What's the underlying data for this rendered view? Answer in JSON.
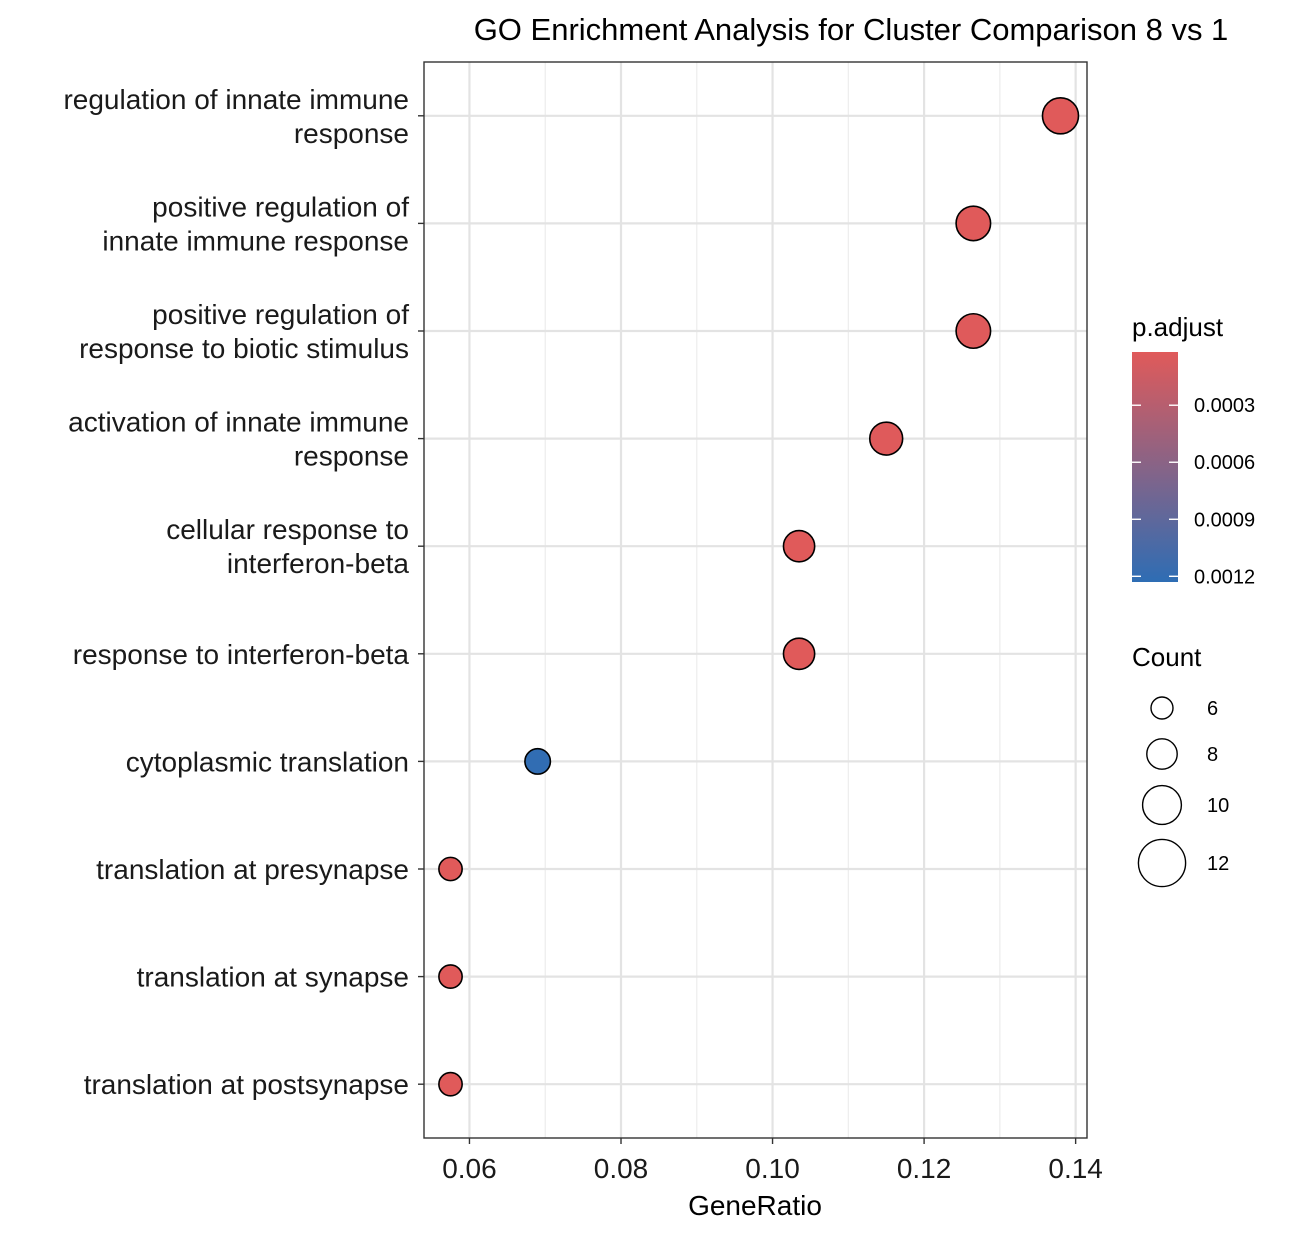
{
  "chart_data": {
    "type": "scatter",
    "title": "GO Enrichment Analysis for Cluster Comparison 8 vs 1",
    "xlabel": "GeneRatio",
    "ylabel": "",
    "xlim": [
      0.054,
      0.1415
    ],
    "x_ticks": [
      "0.06",
      "0.08",
      "0.10",
      "0.12",
      "0.14"
    ],
    "x_tick_values": [
      0.06,
      0.08,
      0.1,
      0.12,
      0.14
    ],
    "grid": true,
    "terms": [
      {
        "label": [
          "regulation of innate immune",
          "response"
        ],
        "gene_ratio": 0.138,
        "count": 12,
        "p_adjust": 2e-05
      },
      {
        "label": [
          "positive regulation of",
          "innate immune response"
        ],
        "gene_ratio": 0.1265,
        "count": 11,
        "p_adjust": 2e-05
      },
      {
        "label": [
          "positive regulation of",
          "response to biotic stimulus"
        ],
        "gene_ratio": 0.1265,
        "count": 11,
        "p_adjust": 3e-05
      },
      {
        "label": [
          "activation of innate immune",
          "response"
        ],
        "gene_ratio": 0.115,
        "count": 10,
        "p_adjust": 3e-05
      },
      {
        "label": [
          "cellular response to",
          "interferon-beta"
        ],
        "gene_ratio": 0.1035,
        "count": 9,
        "p_adjust": 2e-05
      },
      {
        "label": [
          "response to interferon-beta"
        ],
        "gene_ratio": 0.1035,
        "count": 9,
        "p_adjust": 2e-05
      },
      {
        "label": [
          "cytoplasmic translation"
        ],
        "gene_ratio": 0.069,
        "count": 6,
        "p_adjust": 0.00121
      },
      {
        "label": [
          "translation at presynapse"
        ],
        "gene_ratio": 0.0575,
        "count": 5,
        "p_adjust": 2e-05
      },
      {
        "label": [
          "translation at synapse"
        ],
        "gene_ratio": 0.0575,
        "count": 5,
        "p_adjust": 2e-05
      },
      {
        "label": [
          "translation at postsynapse"
        ],
        "gene_ratio": 0.0575,
        "count": 5,
        "p_adjust": 2e-05
      }
    ],
    "color_legend": {
      "title": "p.adjust",
      "range": [
        2e-05,
        0.00123
      ],
      "low_color": "#E05A5A",
      "high_color": "#2E6DB4",
      "ticks": [
        {
          "label": "0.0003",
          "value": 0.0003
        },
        {
          "label": "0.0006",
          "value": 0.0006
        },
        {
          "label": "0.0009",
          "value": 0.0009
        },
        {
          "label": "0.0012",
          "value": 0.0012
        }
      ]
    },
    "size_legend": {
      "title": "Count",
      "entries": [
        {
          "label": "6",
          "value": 6
        },
        {
          "label": "8",
          "value": 8
        },
        {
          "label": "10",
          "value": 10
        },
        {
          "label": "12",
          "value": 12
        }
      ]
    }
  }
}
